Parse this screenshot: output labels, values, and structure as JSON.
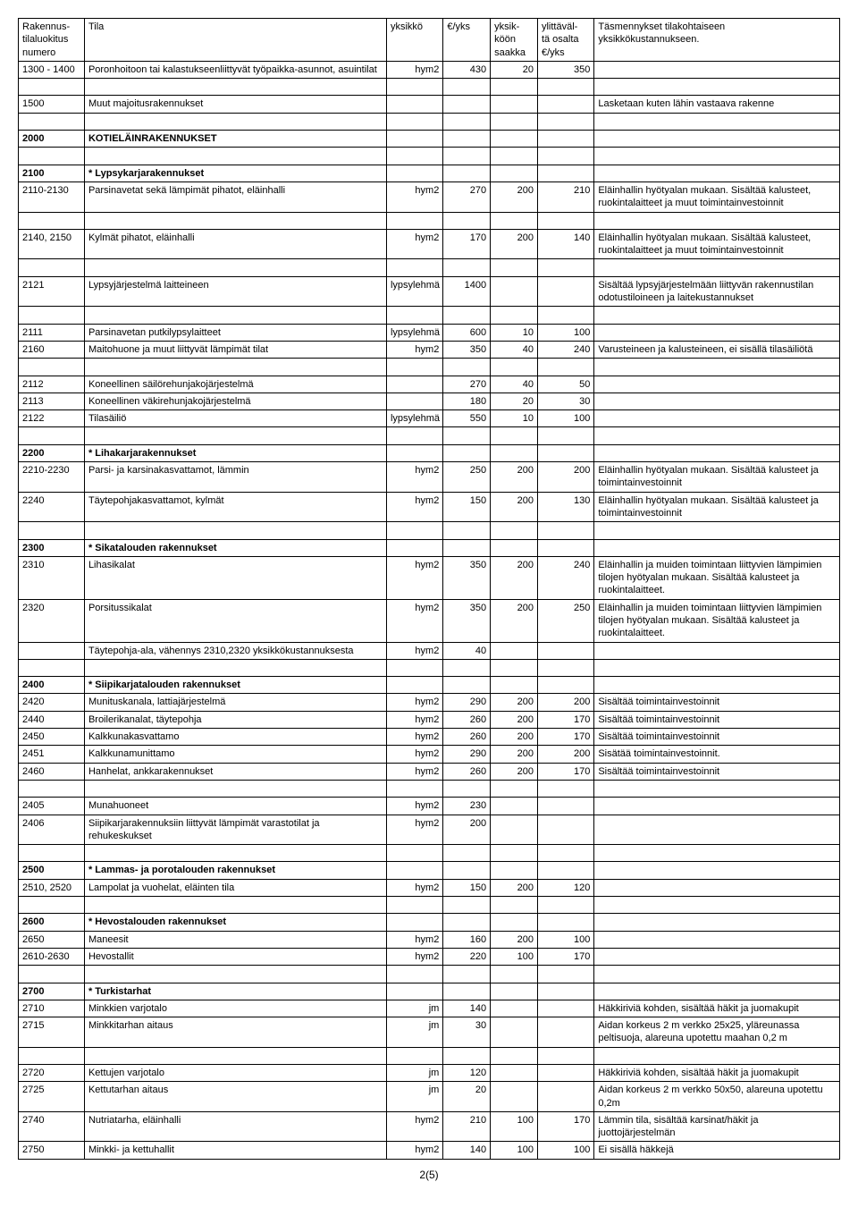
{
  "header": {
    "col0": "Rakennus-\ntilaluokitus\nnumero",
    "col1": "Tila",
    "col2": "yksikkö",
    "col3": "€/yks",
    "col4": "yksik-\nköön\nsaakka",
    "col5": "ylittäväl-\ntä osalta\n€/yks",
    "col6": "Täsmennykset tilakohtaiseen\nyksikkökustannukseen."
  },
  "rows": [
    {
      "c0": "1300 - 1400",
      "c1": "Poronhoitoon tai kalastukseenliittyvät työpaikka-asunnot, asuintilat",
      "c2": "hym2",
      "c3": "430",
      "c4": "20",
      "c5": "350",
      "c6": "",
      "bold": false,
      "spacer": false
    },
    {
      "spacer": true
    },
    {
      "c0": "1500",
      "c1": "Muut majoitusrakennukset",
      "c2": "",
      "c3": "",
      "c4": "",
      "c5": "",
      "c6": "Lasketaan kuten lähin vastaava rakenne",
      "bold": false
    },
    {
      "spacer": true
    },
    {
      "c0": "2000",
      "c1": "KOTIELÄINRAKENNUKSET",
      "c2": "",
      "c3": "",
      "c4": "",
      "c5": "",
      "c6": "",
      "bold": true
    },
    {
      "spacer": true
    },
    {
      "c0": "2100",
      "c1": "* Lypsykarjarakennukset",
      "c2": "",
      "c3": "",
      "c4": "",
      "c5": "",
      "c6": "",
      "bold": true
    },
    {
      "c0": "2110-2130",
      "c1": "Parsinavetat sekä lämpimät pihatot, eläinhalli",
      "c2": "hym2",
      "c3": "270",
      "c4": "200",
      "c5": "210",
      "c6": "Eläinhallin hyötyalan mukaan. Sisältää kalusteet, ruokintalaitteet ja muut toimintainvestoinnit"
    },
    {
      "spacer": true
    },
    {
      "c0": "2140, 2150",
      "c1": "Kylmät pihatot, eläinhalli",
      "c2": "hym2",
      "c3": "170",
      "c4": "200",
      "c5": "140",
      "c6": "Eläinhallin hyötyalan mukaan. Sisältää kalusteet, ruokintalaitteet ja muut toimintainvestoinnit"
    },
    {
      "spacer": true
    },
    {
      "c0": "2121",
      "c1": "Lypsyjärjestelmä laitteineen",
      "c2": "lypsylehmä",
      "c3": "1400",
      "c4": "",
      "c5": "",
      "c6": "Sisältää lypsyjärjestelmään liittyvän rakennustilan odotustiloineen ja laitekustannukset"
    },
    {
      "spacer": true
    },
    {
      "c0": "2111",
      "c1": "Parsinavetan putkilypsylaitteet",
      "c2": "lypsylehmä",
      "c3": "600",
      "c4": "10",
      "c5": "100",
      "c6": ""
    },
    {
      "c0": "2160",
      "c1": "Maitohuone ja muut liittyvät lämpimät tilat",
      "c2": "hym2",
      "c3": "350",
      "c4": "40",
      "c5": "240",
      "c6": "Varusteineen ja kalusteineen, ei sisällä tilasäiliötä"
    },
    {
      "spacer": true
    },
    {
      "c0": "2112",
      "c1": "Koneellinen säilörehunjakojärjestelmä",
      "c2": "",
      "c3": "270",
      "c4": "40",
      "c5": "50",
      "c6": ""
    },
    {
      "c0": "2113",
      "c1": "Koneellinen väkirehunjakojärjestelmä",
      "c2": "",
      "c3": "180",
      "c4": "20",
      "c5": "30",
      "c6": ""
    },
    {
      "c0": "2122",
      "c1": "Tilasäiliö",
      "c2": "lypsylehmä",
      "c3": "550",
      "c4": "10",
      "c5": "100",
      "c6": ""
    },
    {
      "spacer": true
    },
    {
      "c0": "2200",
      "c1": "* Lihakarjarakennukset",
      "c2": "",
      "c3": "",
      "c4": "",
      "c5": "",
      "c6": "",
      "bold": true
    },
    {
      "c0": "2210-2230",
      "c1": "Parsi- ja karsinakasvattamot, lämmin",
      "c2": "hym2",
      "c3": "250",
      "c4": "200",
      "c5": "200",
      "c6": "Eläinhallin hyötyalan mukaan. Sisältää kalusteet ja toimintainvestoinnit"
    },
    {
      "c0": "2240",
      "c1": "Täytepohjakasvattamot, kylmät",
      "c2": "hym2",
      "c3": "150",
      "c4": "200",
      "c5": "130",
      "c6": "Eläinhallin hyötyalan mukaan. Sisältää kalusteet ja toimintainvestoinnit"
    },
    {
      "spacer": true
    },
    {
      "c0": "2300",
      "c1": "* Sikatalouden rakennukset",
      "c2": "",
      "c3": "",
      "c4": "",
      "c5": "",
      "c6": "",
      "bold": true
    },
    {
      "c0": "2310",
      "c1": "Lihasikalat",
      "c2": "hym2",
      "c3": "350",
      "c4": "200",
      "c5": "240",
      "c6": "Eläinhallin ja muiden toimintaan liittyvien lämpimien tilojen hyötyalan mukaan. Sisältää kalusteet ja ruokintalaitteet."
    },
    {
      "c0": "2320",
      "c1": "Porsitussikalat",
      "c2": "hym2",
      "c3": "350",
      "c4": "200",
      "c5": "250",
      "c6": "Eläinhallin ja muiden toimintaan liittyvien lämpimien tilojen hyötyalan mukaan. Sisältää kalusteet ja ruokintalaitteet."
    },
    {
      "c0": "",
      "c1": "Täytepohja-ala, vähennys 2310,2320 yksikkökustannuksesta",
      "c2": "hym2",
      "c3": "40",
      "c4": "",
      "c5": "",
      "c6": ""
    },
    {
      "spacer": true
    },
    {
      "c0": "2400",
      "c1": "* Siipikarjatalouden rakennukset",
      "c2": "",
      "c3": "",
      "c4": "",
      "c5": "",
      "c6": "",
      "bold": true
    },
    {
      "c0": "2420",
      "c1": "Munituskanala, lattiajärjestelmä",
      "c2": "hym2",
      "c3": "290",
      "c4": "200",
      "c5": "200",
      "c6": "Sisältää toimintainvestoinnit"
    },
    {
      "c0": "2440",
      "c1": "Broilerikanalat, täytepohja",
      "c2": "hym2",
      "c3": "260",
      "c4": "200",
      "c5": "170",
      "c6": "Sisältää toimintainvestoinnit"
    },
    {
      "c0": "2450",
      "c1": "Kalkkunakasvattamo",
      "c2": "hym2",
      "c3": "260",
      "c4": "200",
      "c5": "170",
      "c6": "Sisältää toimintainvestoinnit"
    },
    {
      "c0": "2451",
      "c1": "Kalkkunamunittamo",
      "c2": "hym2",
      "c3": "290",
      "c4": "200",
      "c5": "200",
      "c6": "Sisätää toimintainvestoinnit."
    },
    {
      "c0": "2460",
      "c1": "Hanhelat, ankkarakennukset",
      "c2": "hym2",
      "c3": "260",
      "c4": "200",
      "c5": "170",
      "c6": "Sisältää toimintainvestoinnit"
    },
    {
      "spacer": true
    },
    {
      "c0": "2405",
      "c1": "Munahuoneet",
      "c2": "hym2",
      "c3": "230",
      "c4": "",
      "c5": "",
      "c6": ""
    },
    {
      "c0": "2406",
      "c1": "Siipikarjarakennuksiin liittyvät lämpimät varastotilat ja rehukeskukset",
      "c2": "hym2",
      "c3": "200",
      "c4": "",
      "c5": "",
      "c6": ""
    },
    {
      "spacer": true
    },
    {
      "c0": "2500",
      "c1": "* Lammas- ja porotalouden rakennukset",
      "c2": "",
      "c3": "",
      "c4": "",
      "c5": "",
      "c6": "",
      "bold": true
    },
    {
      "c0": "2510, 2520",
      "c1": "Lampolat ja vuohelat, eläinten tila",
      "c2": "hym2",
      "c3": "150",
      "c4": "200",
      "c5": "120",
      "c6": ""
    },
    {
      "spacer": true
    },
    {
      "c0": "2600",
      "c1": "* Hevostalouden rakennukset",
      "c2": "",
      "c3": "",
      "c4": "",
      "c5": "",
      "c6": "",
      "bold": true
    },
    {
      "c0": "2650",
      "c1": "Maneesit",
      "c2": "hym2",
      "c3": "160",
      "c4": "200",
      "c5": "100",
      "c6": ""
    },
    {
      "c0": "2610-2630",
      "c1": "Hevostallit",
      "c2": "hym2",
      "c3": "220",
      "c4": "100",
      "c5": "170",
      "c6": ""
    },
    {
      "spacer": true
    },
    {
      "c0": "2700",
      "c1": "* Turkistarhat",
      "c2": "",
      "c3": "",
      "c4": "",
      "c5": "",
      "c6": "",
      "bold": true
    },
    {
      "c0": "2710",
      "c1": "Minkkien varjotalo",
      "c2": "jm",
      "c3": "140",
      "c4": "",
      "c5": "",
      "c6": "Häkkiriviä kohden, sisältää häkit ja juomakupit"
    },
    {
      "c0": "2715",
      "c1": "Minkkitarhan aitaus",
      "c2": "jm",
      "c3": "30",
      "c4": "",
      "c5": "",
      "c6": "Aidan korkeus 2 m verkko 25x25, yläreunassa peltisuoja, alareuna upotettu maahan 0,2 m"
    },
    {
      "spacer": true
    },
    {
      "c0": "2720",
      "c1": "Kettujen varjotalo",
      "c2": "jm",
      "c3": "120",
      "c4": "",
      "c5": "",
      "c6": "Häkkiriviä kohden, sisältää häkit ja juomakupit"
    },
    {
      "c0": "2725",
      "c1": "Kettutarhan aitaus",
      "c2": "jm",
      "c3": "20",
      "c4": "",
      "c5": "",
      "c6": "Aidan korkeus 2 m verkko 50x50, alareuna upotettu 0,2m"
    },
    {
      "c0": "2740",
      "c1": "Nutriatarha, eläinhalli",
      "c2": "hym2",
      "c3": "210",
      "c4": "100",
      "c5": "170",
      "c6": "Lämmin tila, sisältää karsinat/häkit ja juottojärjestelmän"
    },
    {
      "c0": "2750",
      "c1": "Minkki- ja kettuhallit",
      "c2": "hym2",
      "c3": "140",
      "c4": "100",
      "c5": "100",
      "c6": "Ei sisällä häkkejä"
    }
  ],
  "pagenum": "2(5)"
}
